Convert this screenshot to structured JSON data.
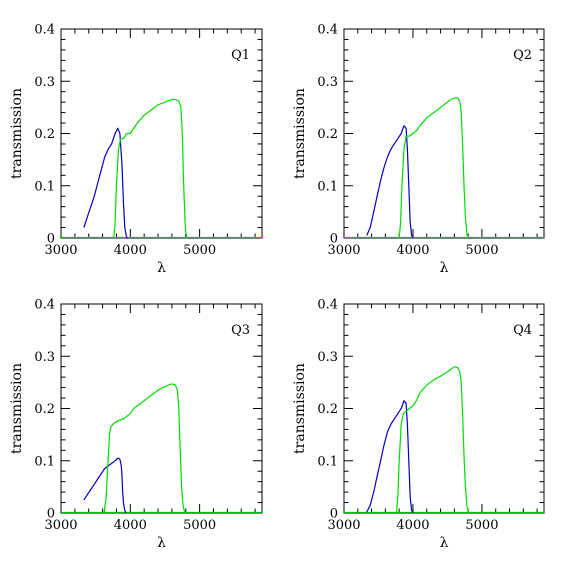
{
  "chart_data": [
    {
      "type": "line",
      "label": "Q1",
      "xlabel": "λ",
      "ylabel": "transmission",
      "xlim": [
        3000,
        5900
      ],
      "ylim": [
        0,
        0.4
      ],
      "xticks": [
        3000,
        4000,
        5000
      ],
      "xtick_labels": [
        "3000",
        "4000",
        "5000"
      ],
      "yticks": [
        0,
        0.1,
        0.2,
        0.3,
        0.4
      ],
      "ytick_labels": [
        "0",
        "0.1",
        "0.2",
        "0.3",
        "0.4"
      ],
      "series": [
        {
          "color": "#0000cc",
          "x": [
            3330,
            3380,
            3430,
            3480,
            3530,
            3580,
            3630,
            3680,
            3730,
            3780,
            3820,
            3850,
            3880,
            3900,
            3920,
            3940,
            3950,
            3970
          ],
          "y": [
            0.02,
            0.04,
            0.06,
            0.08,
            0.105,
            0.13,
            0.155,
            0.17,
            0.18,
            0.2,
            0.21,
            0.2,
            0.14,
            0.07,
            0.02,
            0.005,
            0,
            0
          ]
        },
        {
          "color": "#00dd00",
          "x": [
            3760,
            3780,
            3800,
            3830,
            3860,
            3900,
            3950,
            4000,
            4050,
            4100,
            4200,
            4300,
            4400,
            4500,
            4600,
            4650,
            4700,
            4730,
            4750,
            4770,
            4790,
            4800,
            4820
          ],
          "y": [
            0,
            0.03,
            0.1,
            0.17,
            0.19,
            0.19,
            0.2,
            0.2,
            0.21,
            0.22,
            0.235,
            0.245,
            0.255,
            0.26,
            0.265,
            0.265,
            0.262,
            0.25,
            0.2,
            0.1,
            0.03,
            0.01,
            0
          ]
        }
      ]
    },
    {
      "type": "line",
      "label": "Q2",
      "xlabel": "λ",
      "ylabel": "transmission",
      "xlim": [
        3000,
        5900
      ],
      "ylim": [
        0,
        0.4
      ],
      "xticks": [
        3000,
        4000,
        5000
      ],
      "xtick_labels": [
        "3000",
        "4000",
        "5000"
      ],
      "yticks": [
        0,
        0.1,
        0.2,
        0.3,
        0.4
      ],
      "ytick_labels": [
        "0",
        "0.1",
        "0.2",
        "0.3",
        "0.4"
      ],
      "series": [
        {
          "color": "#0000cc",
          "x": [
            3330,
            3380,
            3430,
            3480,
            3530,
            3580,
            3630,
            3680,
            3730,
            3780,
            3830,
            3870,
            3900,
            3920,
            3940,
            3960,
            3980,
            4000
          ],
          "y": [
            0.005,
            0.02,
            0.05,
            0.08,
            0.11,
            0.135,
            0.155,
            0.17,
            0.18,
            0.19,
            0.2,
            0.215,
            0.21,
            0.17,
            0.1,
            0.03,
            0.005,
            0
          ]
        },
        {
          "color": "#00dd00",
          "x": [
            3800,
            3820,
            3840,
            3870,
            3900,
            3950,
            4000,
            4050,
            4100,
            4200,
            4300,
            4400,
            4500,
            4550,
            4600,
            4650,
            4680,
            4700,
            4720,
            4740,
            4760,
            4780,
            4800
          ],
          "y": [
            0,
            0.03,
            0.1,
            0.17,
            0.195,
            0.195,
            0.2,
            0.205,
            0.215,
            0.23,
            0.24,
            0.25,
            0.26,
            0.265,
            0.268,
            0.268,
            0.26,
            0.24,
            0.18,
            0.1,
            0.04,
            0.01,
            0
          ]
        }
      ]
    },
    {
      "type": "line",
      "label": "Q3",
      "xlabel": "λ",
      "ylabel": "transmission",
      "xlim": [
        3000,
        5900
      ],
      "ylim": [
        0,
        0.4
      ],
      "xticks": [
        3000,
        4000,
        5000
      ],
      "xtick_labels": [
        "3000",
        "4000",
        "5000"
      ],
      "yticks": [
        0,
        0.1,
        0.2,
        0.3,
        0.4
      ],
      "ytick_labels": [
        "0",
        "0.1",
        "0.2",
        "0.3",
        "0.4"
      ],
      "series": [
        {
          "color": "#0000cc",
          "x": [
            3330,
            3380,
            3430,
            3480,
            3530,
            3580,
            3630,
            3680,
            3730,
            3780,
            3820,
            3850,
            3870,
            3880,
            3890,
            3900,
            3920,
            3940
          ],
          "y": [
            0.025,
            0.035,
            0.045,
            0.055,
            0.065,
            0.075,
            0.085,
            0.09,
            0.095,
            0.1,
            0.105,
            0.103,
            0.09,
            0.07,
            0.04,
            0.02,
            0.005,
            0
          ]
        },
        {
          "color": "#00dd00",
          "x": [
            3620,
            3650,
            3680,
            3700,
            3720,
            3750,
            3800,
            3850,
            3900,
            3950,
            4000,
            4050,
            4100,
            4200,
            4300,
            4400,
            4500,
            4550,
            4600,
            4650,
            4680,
            4700,
            4720,
            4740,
            4760,
            4780,
            4800
          ],
          "y": [
            0,
            0.03,
            0.1,
            0.15,
            0.165,
            0.17,
            0.175,
            0.178,
            0.18,
            0.185,
            0.19,
            0.2,
            0.205,
            0.215,
            0.225,
            0.235,
            0.242,
            0.245,
            0.247,
            0.245,
            0.235,
            0.2,
            0.12,
            0.05,
            0.015,
            0.003,
            0
          ]
        }
      ]
    },
    {
      "type": "line",
      "label": "Q4",
      "xlabel": "λ",
      "ylabel": "transmission",
      "xlim": [
        3000,
        5900
      ],
      "ylim": [
        0,
        0.4
      ],
      "xticks": [
        3000,
        4000,
        5000
      ],
      "xtick_labels": [
        "3000",
        "4000",
        "5000"
      ],
      "yticks": [
        0,
        0.1,
        0.2,
        0.3,
        0.4
      ],
      "ytick_labels": [
        "0",
        "0.1",
        "0.2",
        "0.3",
        "0.4"
      ],
      "series": [
        {
          "color": "#0000cc",
          "x": [
            3330,
            3380,
            3430,
            3480,
            3530,
            3580,
            3630,
            3680,
            3730,
            3780,
            3830,
            3870,
            3900,
            3920,
            3940,
            3960,
            3980,
            4000
          ],
          "y": [
            0.002,
            0.015,
            0.04,
            0.07,
            0.1,
            0.13,
            0.155,
            0.17,
            0.18,
            0.19,
            0.2,
            0.215,
            0.21,
            0.17,
            0.1,
            0.03,
            0.005,
            0
          ]
        },
        {
          "color": "#00dd00",
          "x": [
            3760,
            3780,
            3800,
            3830,
            3860,
            3900,
            3950,
            4000,
            4050,
            4100,
            4200,
            4300,
            4400,
            4500,
            4550,
            4600,
            4650,
            4680,
            4700,
            4720,
            4740,
            4760,
            4780,
            4800,
            4820
          ],
          "y": [
            0,
            0.03,
            0.1,
            0.17,
            0.19,
            0.195,
            0.2,
            0.205,
            0.215,
            0.23,
            0.245,
            0.255,
            0.262,
            0.27,
            0.275,
            0.28,
            0.278,
            0.27,
            0.25,
            0.19,
            0.11,
            0.05,
            0.015,
            0.003,
            0
          ]
        }
      ]
    }
  ]
}
